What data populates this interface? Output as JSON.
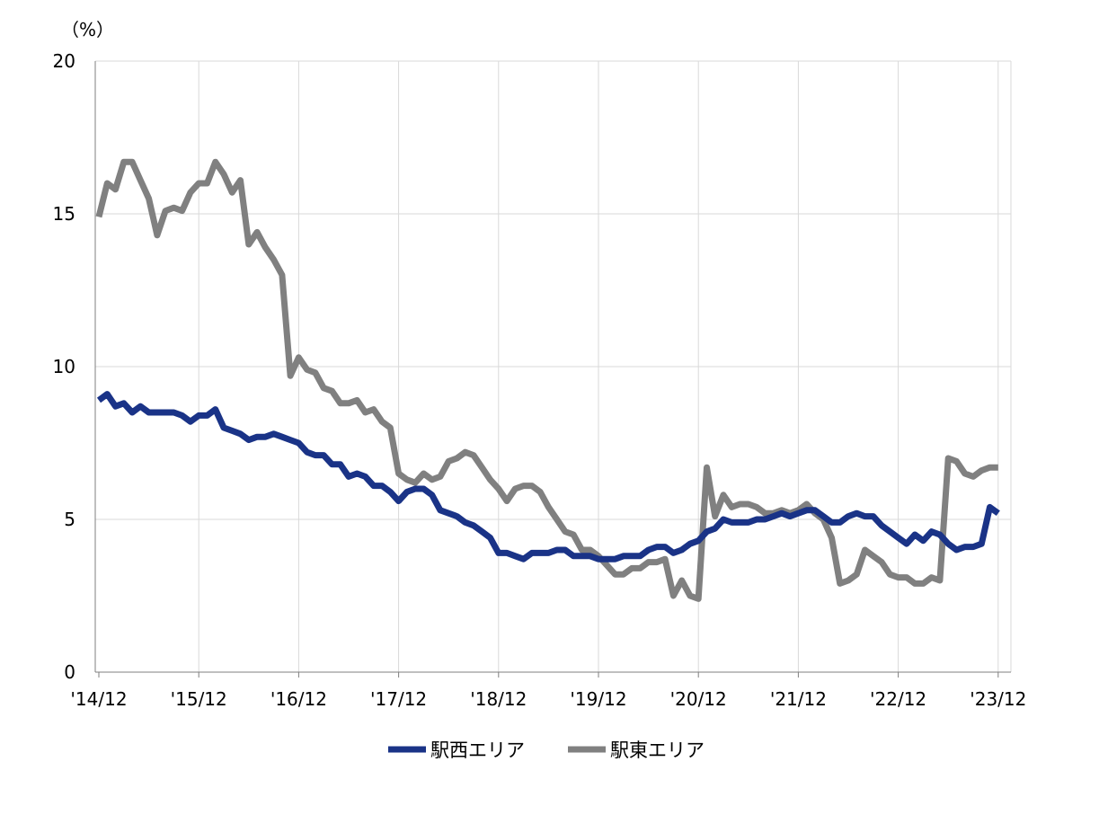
{
  "chart_data": {
    "type": "line",
    "ylabel": "（%）",
    "ylim": [
      0,
      20
    ],
    "yticks": [
      "0",
      "5",
      "10",
      "15",
      "20"
    ],
    "xticks": [
      "'14/12",
      "'15/12",
      "'16/12",
      "'17/12",
      "'18/12",
      "'19/12",
      "'20/12",
      "'21/12",
      "'22/12",
      "'23/12"
    ],
    "grid": true,
    "legend_position": "bottom",
    "series": [
      {
        "name": "駅西エリア",
        "color": "#1a3387",
        "values": [
          8.9,
          9.1,
          8.7,
          8.8,
          8.5,
          8.7,
          8.5,
          8.5,
          8.5,
          8.5,
          8.4,
          8.2,
          8.4,
          8.4,
          8.6,
          8.0,
          7.9,
          7.8,
          7.6,
          7.7,
          7.7,
          7.8,
          7.7,
          7.6,
          7.5,
          7.2,
          7.1,
          7.1,
          6.8,
          6.8,
          6.4,
          6.5,
          6.4,
          6.1,
          6.1,
          5.9,
          5.6,
          5.9,
          6.0,
          6.0,
          5.8,
          5.3,
          5.2,
          5.1,
          4.9,
          4.8,
          4.6,
          4.4,
          3.9,
          3.9,
          3.8,
          3.7,
          3.9,
          3.9,
          3.9,
          4.0,
          4.0,
          3.8,
          3.8,
          3.8,
          3.7,
          3.7,
          3.7,
          3.8,
          3.8,
          3.8,
          4.0,
          4.1,
          4.1,
          3.9,
          4.0,
          4.2,
          4.3,
          4.6,
          4.7,
          5.0,
          4.9,
          4.9,
          4.9,
          5.0,
          5.0,
          5.1,
          5.2,
          5.1,
          5.2,
          5.3,
          5.3,
          5.1,
          4.9,
          4.9,
          5.1,
          5.2,
          5.1,
          5.1,
          4.8,
          4.6,
          4.4,
          4.2,
          4.5,
          4.3,
          4.6,
          4.5,
          4.2,
          4.0,
          4.1,
          4.1,
          4.2,
          5.4,
          5.2
        ]
      },
      {
        "name": "駅東エリア",
        "color": "#808080",
        "values": [
          14.9,
          16.0,
          15.8,
          16.7,
          16.7,
          16.1,
          15.5,
          14.3,
          15.1,
          15.2,
          15.1,
          15.7,
          16.0,
          16.0,
          16.7,
          16.3,
          15.7,
          16.1,
          14.0,
          14.4,
          13.9,
          13.5,
          13.0,
          9.7,
          10.3,
          9.9,
          9.8,
          9.3,
          9.2,
          8.8,
          8.8,
          8.9,
          8.5,
          8.6,
          8.2,
          8.0,
          6.5,
          6.3,
          6.2,
          6.5,
          6.3,
          6.4,
          6.9,
          7.0,
          7.2,
          7.1,
          6.7,
          6.3,
          6.0,
          5.6,
          6.0,
          6.1,
          6.1,
          5.9,
          5.4,
          5.0,
          4.6,
          4.5,
          4.0,
          4.0,
          3.8,
          3.5,
          3.2,
          3.2,
          3.4,
          3.4,
          3.6,
          3.6,
          3.7,
          2.5,
          3.0,
          2.5,
          2.4,
          6.7,
          5.1,
          5.8,
          5.4,
          5.5,
          5.5,
          5.4,
          5.2,
          5.2,
          5.3,
          5.2,
          5.3,
          5.5,
          5.2,
          5.0,
          4.4,
          2.9,
          3.0,
          3.2,
          4.0,
          3.8,
          3.6,
          3.2,
          3.1,
          3.1,
          2.9,
          2.9,
          3.1,
          3.0,
          7.0,
          6.9,
          6.5,
          6.4,
          6.6,
          6.7,
          6.7
        ]
      }
    ]
  }
}
